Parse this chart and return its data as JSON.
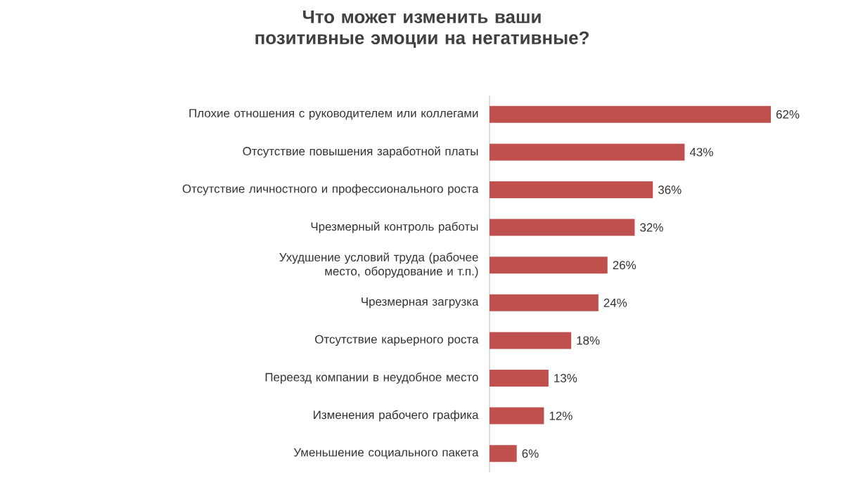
{
  "chart_data": {
    "type": "bar",
    "orientation": "horizontal",
    "title": "Что может изменить ваши позитивные эмоции на негативные?",
    "categories": [
      "Плохие отношения с руководителем или коллегами",
      "Отсутствие повышения заработной платы",
      "Отсутствие личностного и профессионального роста",
      "Чрезмерный контроль работы",
      "Ухудшение условий труда (рабочее место, оборудование и т.п.)",
      "Чрезмерная загрузка",
      "Отсутствие карьерного роста",
      "Переезд компании в неудобное место",
      "Изменения рабочего графика",
      "Уменьшение социального пакета"
    ],
    "values": [
      62,
      43,
      36,
      32,
      26,
      24,
      18,
      13,
      12,
      6
    ],
    "value_labels": [
      "62%",
      "43%",
      "36%",
      "32%",
      "26%",
      "24%",
      "18%",
      "13%",
      "12%",
      "6%"
    ],
    "color": "#c0504d",
    "xlim": [
      0,
      62
    ],
    "tick_labels": "y"
  }
}
